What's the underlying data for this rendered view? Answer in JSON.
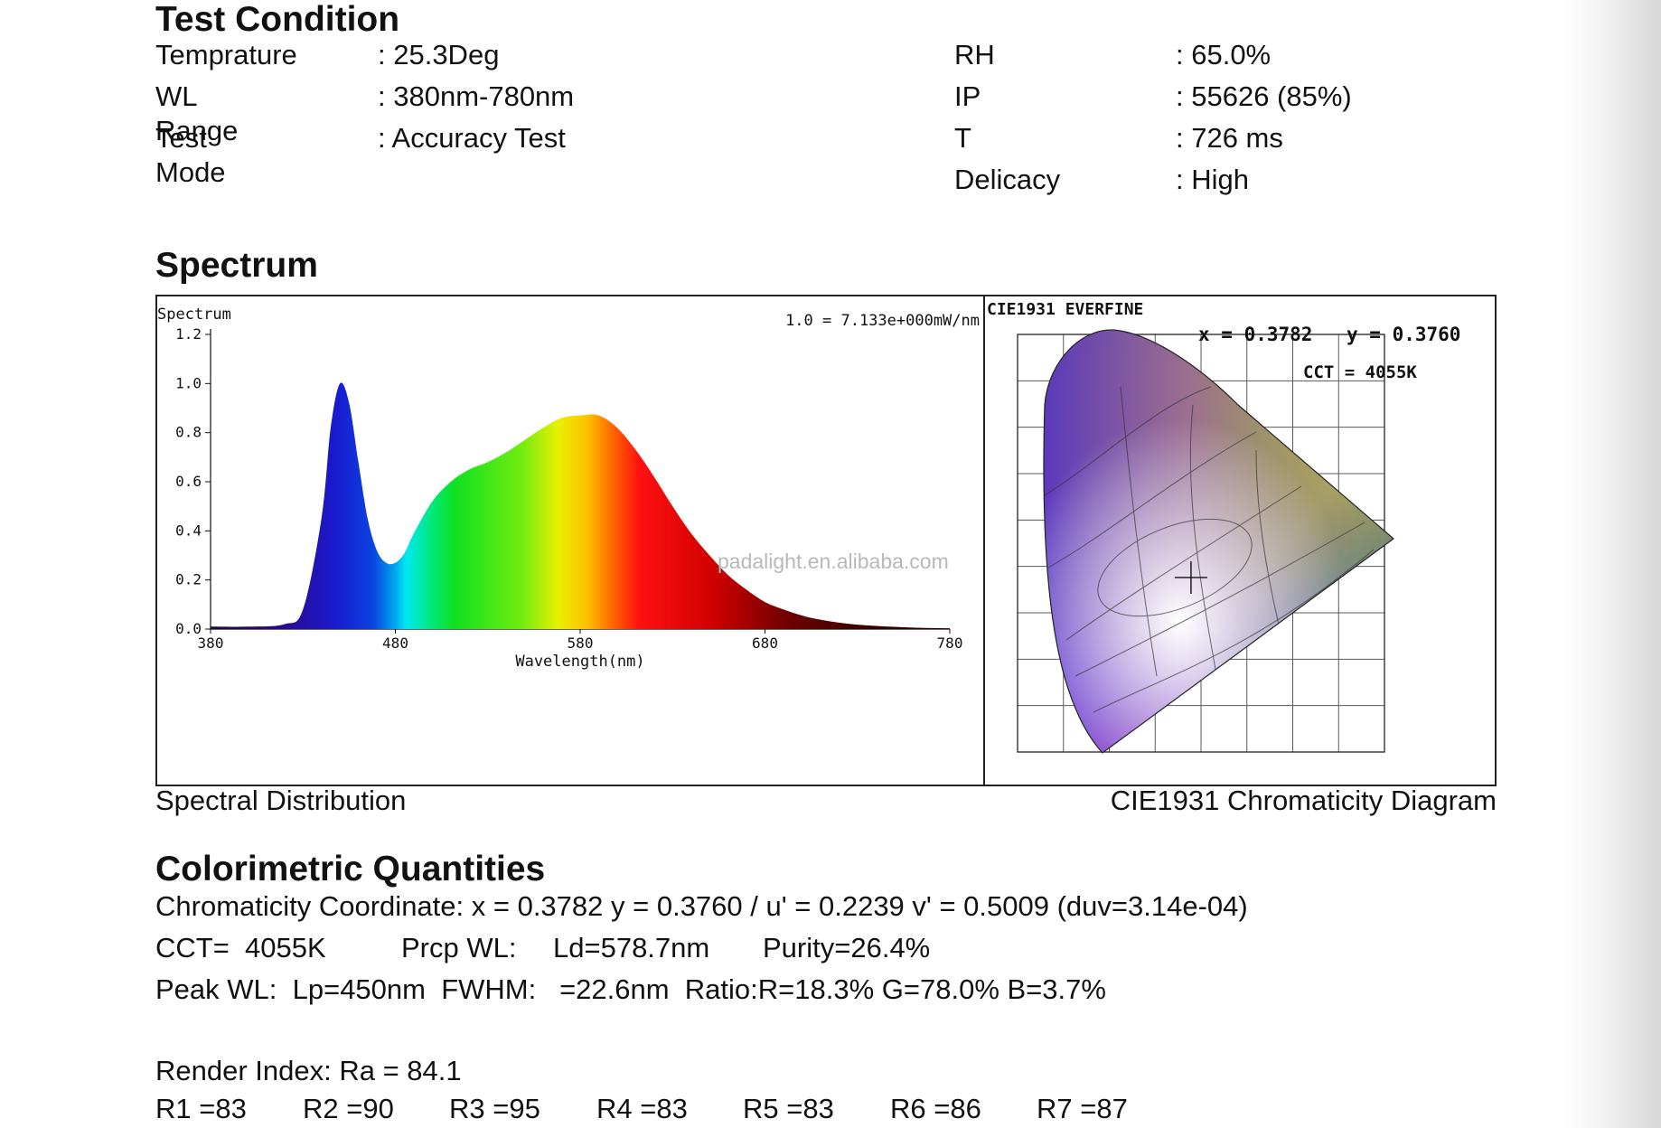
{
  "test_condition": {
    "heading": "Test Condition",
    "left": [
      {
        "label": "Temprature",
        "value": ": 25.3Deg"
      },
      {
        "label": "WL Range",
        "value": ": 380nm-780nm"
      },
      {
        "label": "Test Mode",
        "value": ": Accuracy Test"
      }
    ],
    "right": [
      {
        "label": "RH",
        "value": ": 65.0%"
      },
      {
        "label": "IP",
        "value": ": 55626 (85%)"
      },
      {
        "label": "T",
        "value": ": 726 ms"
      },
      {
        "label": "Delicacy",
        "value": ": High"
      }
    ]
  },
  "spectrum": {
    "heading": "Spectrum",
    "caption_left": "Spectral Distribution",
    "caption_right": "CIE1931 Chromaticity Diagram",
    "watermark": "padalight.en.alibaba.com"
  },
  "chart_data": [
    {
      "type": "area",
      "title": "Spectrum",
      "annotation": "1.0 = 7.133e+000mW/nm",
      "xlabel": "Wavelength(nm)",
      "ylabel": "",
      "xlim": [
        380,
        780
      ],
      "ylim": [
        0,
        1.2
      ],
      "x_ticks": [
        "380",
        "480",
        "580",
        "680",
        "780"
      ],
      "y_ticks": [
        "0.0",
        "0.2",
        "0.4",
        "0.6",
        "0.8",
        "1.0",
        "1.2"
      ],
      "x": [
        380,
        400,
        420,
        430,
        440,
        445,
        450,
        455,
        460,
        465,
        470,
        475,
        480,
        485,
        490,
        500,
        510,
        520,
        530,
        540,
        550,
        560,
        570,
        580,
        590,
        600,
        610,
        620,
        630,
        640,
        650,
        660,
        670,
        680,
        690,
        700,
        710,
        720,
        730,
        740,
        750,
        760,
        770,
        780
      ],
      "values": [
        0.01,
        0.01,
        0.02,
        0.08,
        0.45,
        0.82,
        1.0,
        0.92,
        0.68,
        0.45,
        0.32,
        0.27,
        0.27,
        0.31,
        0.39,
        0.52,
        0.6,
        0.65,
        0.68,
        0.72,
        0.77,
        0.82,
        0.86,
        0.87,
        0.87,
        0.82,
        0.73,
        0.62,
        0.5,
        0.39,
        0.3,
        0.22,
        0.16,
        0.11,
        0.08,
        0.055,
        0.038,
        0.026,
        0.018,
        0.013,
        0.009,
        0.006,
        0.004,
        0.003
      ],
      "grid": false
    },
    {
      "type": "scatter",
      "title": "CIE1931   EVERFINE",
      "x_label_text": "x = 0.3782",
      "y_label_text": "y = 0.3760",
      "cct_text": "CCT = 4055K",
      "point": {
        "x": 0.3782,
        "y": 0.376
      },
      "xlim": [
        0,
        0.8
      ],
      "ylim": [
        0,
        0.9
      ],
      "grid": true
    }
  ],
  "colorimetric": {
    "heading": "Colorimetric Quantities",
    "line1": "Chromaticity Coordinate: x = 0.3782 y = 0.3760 / u' = 0.2239 v' = 0.5009 (duv=3.14e-04)",
    "cct": "CCT=  4055K",
    "prcp": "Prcp WL:",
    "ld": "Ld=578.7nm",
    "purity": "Purity=26.4%",
    "line3": "Peak WL:  Lp=450nm  FWHM:   =22.6nm  Ratio:R=18.3% G=78.0% B=3.7%",
    "render": "Render Index: Ra = 84.1",
    "r_values": [
      "R1 =83",
      "R2 =90",
      "R3 =95",
      "R4 =83",
      "R5 =83",
      "R6 =86",
      "R7 =87"
    ]
  }
}
